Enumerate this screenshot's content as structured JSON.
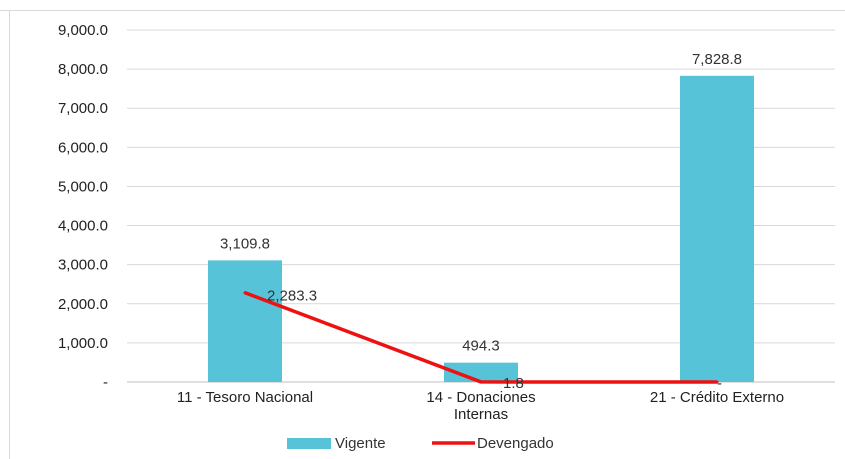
{
  "chart_data": {
    "type": "bar",
    "title": "",
    "categories": [
      "11 - Tesoro Nacional",
      "14 - Donaciones Internas",
      "21 - Crédito Externo"
    ],
    "category_lines": [
      [
        "11 - Tesoro Nacional"
      ],
      [
        "14 - Donaciones",
        "Internas"
      ],
      [
        "21 - Crédito Externo"
      ]
    ],
    "series": [
      {
        "name": "Vigente",
        "kind": "bar",
        "color": "#56c3d8",
        "values": [
          3109.8,
          494.3,
          7828.8
        ],
        "labels": [
          "3,109.8",
          "494.3",
          "7,828.8"
        ]
      },
      {
        "name": "Devengado",
        "kind": "line",
        "color": "#ee1111",
        "values": [
          2283.3,
          1.8,
          0
        ],
        "labels": [
          "2,283.3",
          "1.8",
          "-"
        ]
      }
    ],
    "ylim": [
      0,
      9000
    ],
    "yticks": [
      0,
      1000,
      2000,
      3000,
      4000,
      5000,
      6000,
      7000,
      8000,
      9000
    ],
    "ytick_labels": [
      "-",
      "1,000.0",
      "2,000.0",
      "3,000.0",
      "4,000.0",
      "5,000.0",
      "6,000.0",
      "7,000.0",
      "8,000.0",
      "9,000.0"
    ],
    "grid": true,
    "legend_position": "bottom"
  }
}
